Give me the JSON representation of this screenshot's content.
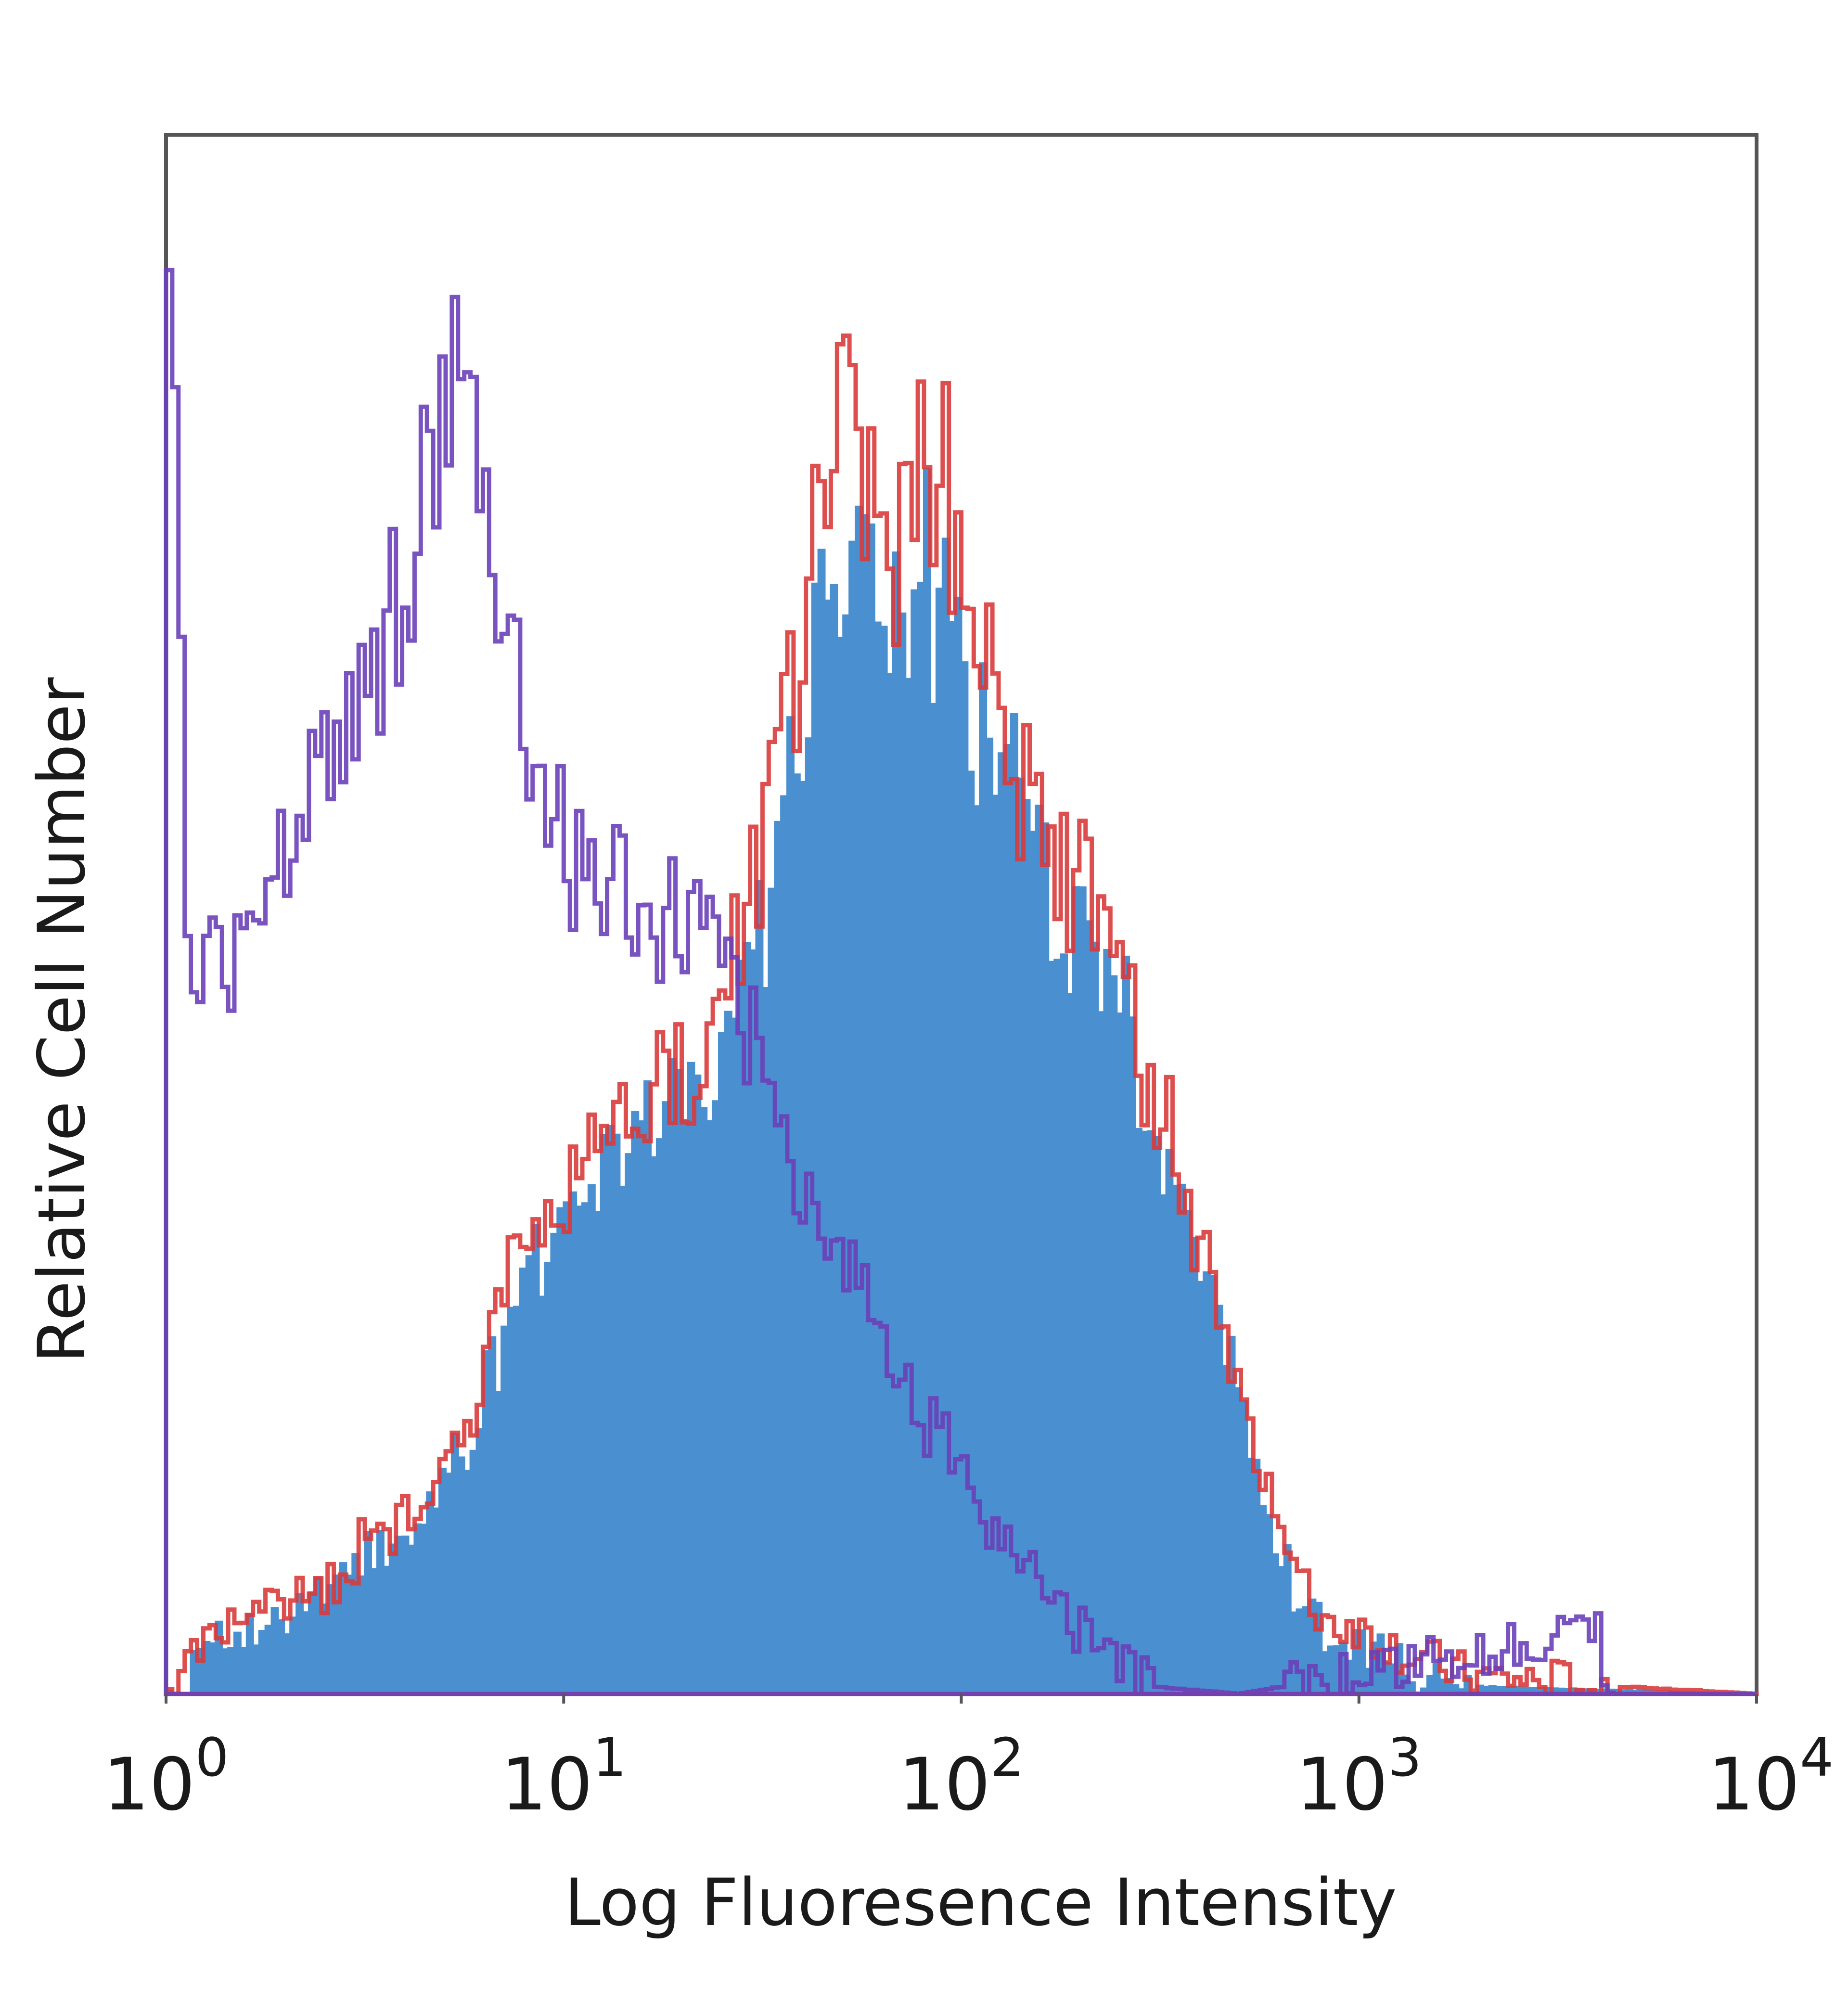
{
  "chart_data": {
    "type": "histogram",
    "title": "",
    "xlabel": "Log Fluoresence Intensity",
    "ylabel": "Relative Cell Number",
    "x_scale": "log",
    "xlim": [
      1,
      10000
    ],
    "ylim": [
      0,
      100
    ],
    "grid": false,
    "legend": "none",
    "x_ticks": [
      {
        "value": 1,
        "base": "10",
        "exp": "0"
      },
      {
        "value": 10,
        "base": "10",
        "exp": "1"
      },
      {
        "value": 100,
        "base": "10",
        "exp": "2"
      },
      {
        "value": 1000,
        "base": "10",
        "exp": "3"
      },
      {
        "value": 10000,
        "base": "10",
        "exp": "4"
      }
    ],
    "series": [
      {
        "color": "#4a8fd0",
        "style": "filled",
        "points": [
          [
            1,
            0
          ],
          [
            1.2,
            2
          ],
          [
            1.5,
            4
          ],
          [
            2,
            5
          ],
          [
            2.5,
            6
          ],
          [
            3,
            8
          ],
          [
            4,
            10
          ],
          [
            5,
            13
          ],
          [
            6,
            17
          ],
          [
            7,
            22
          ],
          [
            8,
            27
          ],
          [
            10,
            30
          ],
          [
            12,
            33
          ],
          [
            15,
            36
          ],
          [
            20,
            38
          ],
          [
            25,
            41
          ],
          [
            30,
            48
          ],
          [
            35,
            55
          ],
          [
            40,
            62
          ],
          [
            45,
            70
          ],
          [
            50,
            72
          ],
          [
            60,
            70
          ],
          [
            70,
            68
          ],
          [
            80,
            72
          ],
          [
            90,
            70
          ],
          [
            100,
            67
          ],
          [
            120,
            60
          ],
          [
            150,
            55
          ],
          [
            200,
            48
          ],
          [
            250,
            44
          ],
          [
            300,
            36
          ],
          [
            400,
            28
          ],
          [
            500,
            18
          ],
          [
            600,
            12
          ],
          [
            700,
            6
          ],
          [
            800,
            4
          ],
          [
            1000,
            3
          ],
          [
            1200,
            2
          ],
          [
            1500,
            1
          ],
          [
            2000,
            0.5
          ],
          [
            10000,
            0
          ]
        ]
      },
      {
        "color": "#d93b3b",
        "style": "line",
        "points": [
          [
            1,
            0
          ],
          [
            1.2,
            3
          ],
          [
            1.5,
            5
          ],
          [
            2,
            6
          ],
          [
            2.5,
            7
          ],
          [
            3,
            9
          ],
          [
            4,
            11
          ],
          [
            5,
            14
          ],
          [
            6,
            19
          ],
          [
            7,
            24
          ],
          [
            8,
            29
          ],
          [
            10,
            32
          ],
          [
            12,
            35
          ],
          [
            15,
            38
          ],
          [
            20,
            40
          ],
          [
            25,
            44
          ],
          [
            30,
            52
          ],
          [
            35,
            60
          ],
          [
            40,
            67
          ],
          [
            45,
            78
          ],
          [
            50,
            80
          ],
          [
            60,
            76
          ],
          [
            70,
            74
          ],
          [
            80,
            79
          ],
          [
            90,
            77
          ],
          [
            100,
            72
          ],
          [
            120,
            65
          ],
          [
            150,
            58
          ],
          [
            200,
            51
          ],
          [
            250,
            47
          ],
          [
            300,
            38
          ],
          [
            400,
            30
          ],
          [
            500,
            20
          ],
          [
            600,
            13
          ],
          [
            700,
            7
          ],
          [
            800,
            5
          ],
          [
            1000,
            4
          ],
          [
            1200,
            3
          ],
          [
            1500,
            2
          ],
          [
            2000,
            1
          ],
          [
            10000,
            0
          ]
        ]
      },
      {
        "color": "#6a40b8",
        "style": "line",
        "points": [
          [
            1,
            100
          ],
          [
            1.08,
            70
          ],
          [
            1.15,
            42
          ],
          [
            1.3,
            45
          ],
          [
            1.5,
            49
          ],
          [
            1.7,
            52
          ],
          [
            2,
            55
          ],
          [
            2.3,
            58
          ],
          [
            2.7,
            64
          ],
          [
            3,
            61
          ],
          [
            3.5,
            67
          ],
          [
            4,
            73
          ],
          [
            4.5,
            78
          ],
          [
            5,
            81
          ],
          [
            5.5,
            83
          ],
          [
            6,
            80
          ],
          [
            7,
            70
          ],
          [
            8,
            62
          ],
          [
            9,
            58
          ],
          [
            10,
            55
          ],
          [
            12,
            52
          ],
          [
            15,
            50
          ],
          [
            18,
            49
          ],
          [
            20,
            49
          ],
          [
            25,
            46
          ],
          [
            30,
            42
          ],
          [
            35,
            37
          ],
          [
            40,
            33
          ],
          [
            50,
            28
          ],
          [
            60,
            25
          ],
          [
            70,
            21
          ],
          [
            80,
            18
          ],
          [
            100,
            15
          ],
          [
            120,
            11
          ],
          [
            150,
            8
          ],
          [
            200,
            4
          ],
          [
            250,
            2
          ],
          [
            300,
            0.5
          ],
          [
            500,
            0
          ],
          [
            4000,
            4
          ],
          [
            4300,
            0
          ],
          [
            10000,
            0
          ]
        ]
      }
    ]
  }
}
